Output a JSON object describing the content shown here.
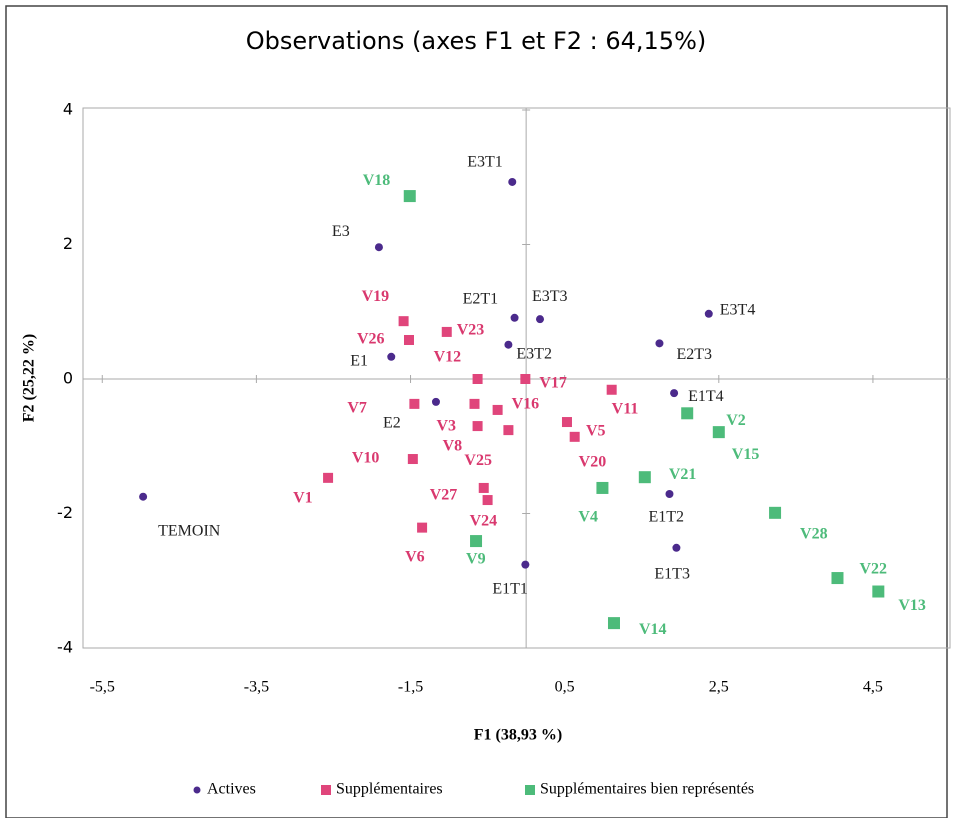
{
  "chart_data": {
    "type": "scatter",
    "title": "Observations (axes F1 et F2 : 64,15%)",
    "x_label": "F1 (38,93 %)",
    "y_label": "F2 (25,22 %)",
    "xlim": [
      -5.75,
      5.5
    ],
    "ylim": [
      -4,
      4
    ],
    "xticks": [
      {
        "value": -5.5,
        "label": "-5,5"
      },
      {
        "value": -3.5,
        "label": "-3,5"
      },
      {
        "value": -1.5,
        "label": "-1,5"
      },
      {
        "value": 0.5,
        "label": "0,5"
      },
      {
        "value": 2.5,
        "label": "2,5"
      },
      {
        "value": 4.5,
        "label": "4,5"
      }
    ],
    "yticks": [
      4,
      2,
      0,
      -2,
      -4
    ],
    "series": [
      {
        "name": "Actives",
        "color": "#4b2a8c",
        "marker": "circle",
        "labels": [
          "TEMOIN",
          "E3T1",
          "E3",
          "E2T1",
          "E3T3",
          "E3T2",
          "E1",
          "E2",
          "E3T4",
          "E2T3",
          "E1T4",
          "E1T2",
          "E1T3",
          "E1T1"
        ],
        "x": [
          -4.97,
          -0.18,
          -1.91,
          -0.15,
          0.18,
          -0.23,
          -1.75,
          -1.17,
          2.37,
          1.73,
          1.92,
          1.86,
          1.95,
          -0.01
        ],
        "values": [
          -1.75,
          2.93,
          1.96,
          0.91,
          0.89,
          0.51,
          0.33,
          -0.34,
          0.97,
          0.53,
          -0.21,
          -1.71,
          -2.51,
          -2.76
        ]
      },
      {
        "name": "Supplémentaires",
        "color": "#e0457b",
        "marker": "square",
        "labels": [
          "V19",
          "V26",
          "V23",
          "V12",
          "V17",
          "V7",
          "V3",
          "V16",
          "V8",
          "V25",
          "V11",
          "V5",
          "V20",
          "V10",
          "V1",
          "V27",
          "V24",
          "V6"
        ],
        "x": [
          -1.59,
          -1.52,
          -1.03,
          -0.63,
          -0.01,
          -1.45,
          -0.67,
          -0.37,
          -0.63,
          -0.23,
          1.11,
          0.53,
          0.63,
          -1.47,
          -2.57,
          -0.55,
          -0.5,
          -1.35
        ],
        "values": [
          0.86,
          0.58,
          0.7,
          0.0,
          0.0,
          -0.37,
          -0.37,
          -0.46,
          -0.7,
          -0.76,
          -0.16,
          -0.64,
          -0.86,
          -1.19,
          -1.47,
          -1.62,
          -1.8,
          -2.21
        ]
      },
      {
        "name": "Supplémentaires bien représentés",
        "color": "#4dbb7a",
        "marker": "square",
        "labels": [
          "V18",
          "V2",
          "V15",
          "V21",
          "V4",
          "V9",
          "V28",
          "V22",
          "V13",
          "V14"
        ],
        "x": [
          -1.51,
          2.09,
          2.5,
          1.54,
          0.99,
          -0.65,
          3.23,
          4.04,
          4.57,
          1.14
        ],
        "values": [
          2.72,
          -0.51,
          -0.79,
          -1.46,
          -1.62,
          -2.41,
          -1.99,
          -2.96,
          -3.16,
          -3.63
        ]
      }
    ]
  }
}
